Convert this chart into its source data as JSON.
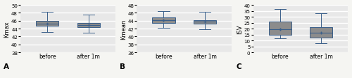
{
  "panels": [
    {
      "label": "A",
      "ylabel": "Kmax",
      "ylim": [
        38,
        50
      ],
      "yticks": [
        38,
        40,
        42,
        44,
        46,
        48,
        50
      ],
      "groups": [
        "before",
        "after 1m"
      ],
      "boxes": [
        {
          "q1": 44.7,
          "median": 45.3,
          "q3": 45.9,
          "whislo": 43.2,
          "whishi": 48.2,
          "mean": 45.3
        },
        {
          "q1": 44.4,
          "median": 44.9,
          "q3": 45.5,
          "whislo": 43.0,
          "whishi": 47.5,
          "mean": 44.9
        }
      ]
    },
    {
      "label": "B",
      "ylabel": "Kmean",
      "ylim": [
        36,
        48
      ],
      "yticks": [
        36,
        38,
        40,
        42,
        44,
        46,
        48
      ],
      "groups": [
        "before",
        "after 1m"
      ],
      "boxes": [
        {
          "q1": 43.5,
          "median": 44.2,
          "q3": 44.9,
          "whislo": 42.2,
          "whishi": 46.5,
          "mean": 44.2
        },
        {
          "q1": 43.2,
          "median": 43.7,
          "q3": 44.2,
          "whislo": 41.8,
          "whishi": 46.3,
          "mean": 43.7
        }
      ]
    },
    {
      "label": "C",
      "ylabel": "ISV",
      "ylim": [
        0,
        40
      ],
      "yticks": [
        0,
        5,
        10,
        15,
        20,
        25,
        30,
        35,
        40
      ],
      "groups": [
        "before",
        "after 1m"
      ],
      "boxes": [
        {
          "q1": 14.5,
          "median": 19.5,
          "q3": 26.0,
          "whislo": 12.0,
          "whishi": 36.5,
          "mean": 19.5
        },
        {
          "q1": 12.5,
          "median": 16.5,
          "q3": 21.0,
          "whislo": 7.5,
          "whishi": 33.0,
          "mean": 16.5
        }
      ]
    }
  ],
  "box_facecolor": "#8c8c8c",
  "box_edgecolor": "#3a5f8a",
  "median_color": "#3a5f8a",
  "mean_color": "#3a5f8a",
  "whisker_color": "#3a5f8a",
  "cap_color": "#3a5f8a",
  "plot_bg_color": "#e8e8e8",
  "fig_bg_color": "#f5f5f2",
  "grid_color": "#ffffff",
  "label_fontsize": 5.5,
  "tick_fontsize": 5.0,
  "ylabel_fontsize": 6.0,
  "panel_letter_fontsize": 7.5
}
